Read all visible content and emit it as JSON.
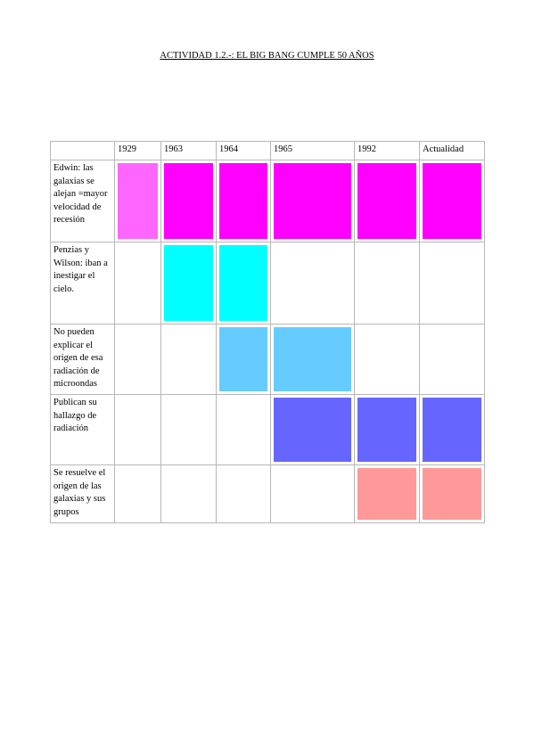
{
  "document": {
    "title": "ACTIVIDAD 1.2.-: EL BIG BANG CUMPLE 50 AÑOS"
  },
  "table": {
    "corner": "",
    "years": [
      "1929",
      "1963",
      "1964",
      "1965",
      "1992",
      "Actualidad"
    ],
    "rows": [
      {
        "label": "Edwin: las galaxias se alejan =mayor velocidad de recesión",
        "color": "#ff00ff",
        "first_color": "#ff66ff",
        "filled": [
          true,
          true,
          true,
          true,
          true,
          true
        ]
      },
      {
        "label": "Penzias y Wilson: iban a inestigar el cielo.",
        "color": "#00ffff",
        "filled": [
          false,
          true,
          true,
          false,
          false,
          false
        ]
      },
      {
        "label": "No pueden explicar el origen de esa radiación de microondas",
        "color": "#66ccff",
        "filled": [
          false,
          false,
          true,
          true,
          false,
          false
        ]
      },
      {
        "label": "Publican su hallazgo de radiación",
        "color": "#6666ff",
        "filled": [
          false,
          false,
          false,
          true,
          true,
          true
        ]
      },
      {
        "label": "Se resuelve el origen de las galaxias y sus grupos",
        "color": "#ff9999",
        "filled": [
          false,
          false,
          false,
          false,
          true,
          true
        ]
      }
    ]
  }
}
